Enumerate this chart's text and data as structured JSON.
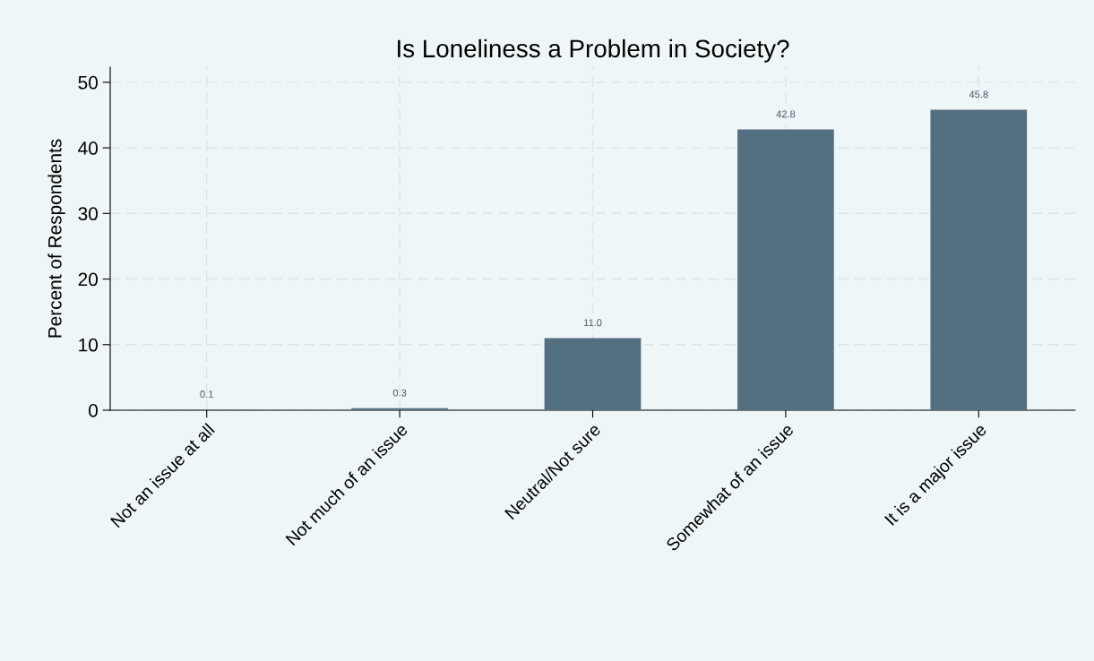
{
  "chart_data": {
    "type": "bar",
    "title": "Is Loneliness a Problem in Society?",
    "ylabel": "Percent of Respondents",
    "categories": [
      "Not an issue at all",
      "Not much of an issue",
      "Neutral/Not sure",
      "Somewhat of an issue",
      "It is a major issue"
    ],
    "values": [
      0.1,
      0.3,
      11.0,
      42.8,
      45.8
    ],
    "color": "#546f7f",
    "ylim": [
      0,
      52.3
    ],
    "yticks": [
      0,
      10,
      20,
      30,
      40,
      50
    ],
    "grid": true,
    "value_labels": [
      "0.1",
      "0.3",
      "11.0",
      "42.8",
      "45.8"
    ]
  }
}
